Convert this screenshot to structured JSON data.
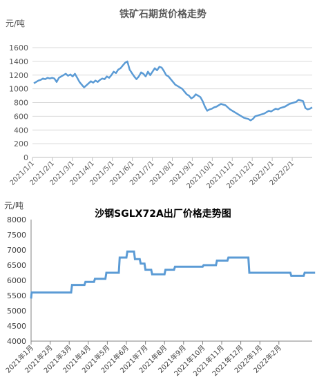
{
  "chart_data": [
    {
      "type": "line",
      "title": "铁矿石期货价格走势",
      "unit_label": "元/吨",
      "ylim": [
        0,
        1600
      ],
      "y_ticks": [
        0,
        200,
        400,
        600,
        800,
        1000,
        1200,
        1400,
        1600
      ],
      "x_ticks": [
        "2021/1/1",
        "2021/2/1",
        "2021/3/1",
        "2021/4/1",
        "2021/5/1",
        "2021/6/1",
        "2021/7/1",
        "2021/8/1",
        "2021/9/1",
        "2021/10/1",
        "2021/11/1",
        "2021/12/1",
        "2022/1/1",
        "2022/2/1"
      ],
      "grid": true,
      "color": "#5b9bd5",
      "series": [
        {
          "values": [
            1080,
            1100,
            1120,
            1130,
            1150,
            1140,
            1160,
            1150,
            1160,
            1150,
            1100,
            1160,
            1180,
            1200,
            1220,
            1190,
            1210,
            1180,
            1220,
            1160,
            1100,
            1060,
            1020,
            1050,
            1080,
            1110,
            1090,
            1120,
            1100,
            1130,
            1150,
            1140,
            1180,
            1160,
            1200,
            1250,
            1230,
            1280,
            1300,
            1340,
            1380,
            1400,
            1280,
            1230,
            1180,
            1140,
            1180,
            1240,
            1220,
            1180,
            1250,
            1200,
            1250,
            1300,
            1270,
            1320,
            1310,
            1260,
            1200,
            1180,
            1140,
            1100,
            1060,
            1040,
            1020,
            1000,
            960,
            920,
            900,
            860,
            880,
            920,
            900,
            880,
            820,
            740,
            680,
            700,
            710,
            730,
            740,
            760,
            780,
            770,
            760,
            730,
            700,
            680,
            660,
            640,
            620,
            600,
            580,
            570,
            560,
            540,
            560,
            600,
            610,
            620,
            630,
            640,
            660,
            680,
            670,
            690,
            710,
            700,
            720,
            730,
            740,
            760,
            780,
            790,
            800,
            810,
            840,
            830,
            820,
            720,
            700,
            710,
            730
          ]
        }
      ]
    },
    {
      "type": "line",
      "title": "沙钢SGLX72A出厂价格走势图",
      "unit_label": "元/吨",
      "ylim": [
        4000,
        8000
      ],
      "y_ticks": [
        4000,
        4500,
        5000,
        5500,
        6000,
        6500,
        7000,
        7500,
        8000
      ],
      "x_ticks": [
        "2021年1月",
        "2021年2月",
        "2021年3月",
        "2021年4月",
        "2021年5月",
        "2021年6月",
        "2021年7月",
        "2021年8月",
        "2021年9月",
        "2021年10月",
        "2021年11月",
        "2021年12月",
        "2022年1月",
        "2022年2月"
      ],
      "grid": false,
      "color": "#5b9bd5",
      "series": [
        {
          "points": [
            [
              0.0,
              5400
            ],
            [
              0.03,
              5600
            ],
            [
              2.1,
              5600
            ],
            [
              2.15,
              5850
            ],
            [
              2.8,
              5850
            ],
            [
              2.85,
              5950
            ],
            [
              3.3,
              5950
            ],
            [
              3.35,
              6050
            ],
            [
              3.9,
              6050
            ],
            [
              3.95,
              6250
            ],
            [
              4.6,
              6250
            ],
            [
              4.65,
              6750
            ],
            [
              5.0,
              6750
            ],
            [
              5.05,
              6950
            ],
            [
              5.4,
              6950
            ],
            [
              5.45,
              6700
            ],
            [
              5.7,
              6700
            ],
            [
              5.75,
              6550
            ],
            [
              5.95,
              6550
            ],
            [
              6.0,
              6350
            ],
            [
              6.3,
              6350
            ],
            [
              6.35,
              6200
            ],
            [
              7.0,
              6200
            ],
            [
              7.05,
              6350
            ],
            [
              7.5,
              6350
            ],
            [
              7.55,
              6450
            ],
            [
              9.0,
              6450
            ],
            [
              9.05,
              6500
            ],
            [
              9.7,
              6500
            ],
            [
              9.75,
              6650
            ],
            [
              10.3,
              6650
            ],
            [
              10.35,
              6750
            ],
            [
              11.4,
              6750
            ],
            [
              11.45,
              6250
            ],
            [
              13.6,
              6250
            ],
            [
              13.65,
              6150
            ],
            [
              14.3,
              6150
            ],
            [
              14.35,
              6250
            ],
            [
              14.9,
              6250
            ]
          ]
        }
      ]
    }
  ]
}
